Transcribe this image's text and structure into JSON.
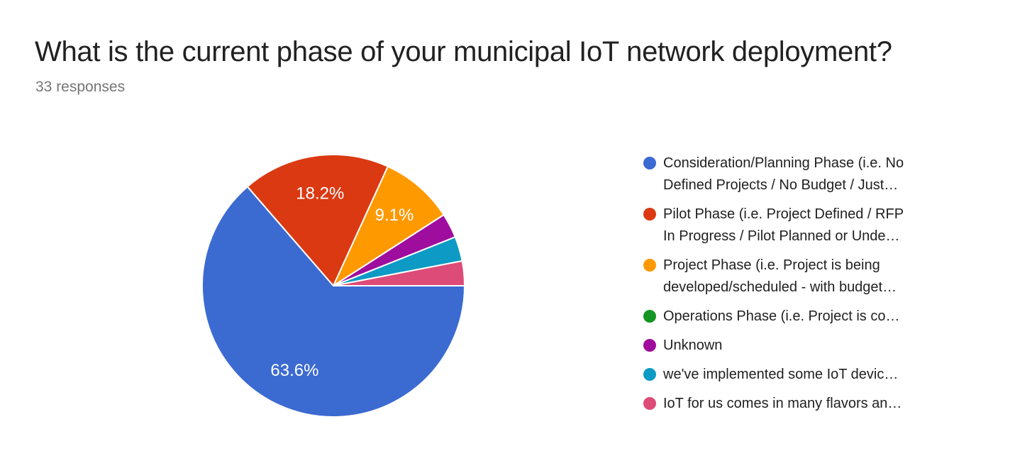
{
  "header": {
    "title": "What is the current phase of your municipal IoT network deployment?",
    "subtitle": "33 responses"
  },
  "chart_data": {
    "type": "pie",
    "title": "What is the current phase of your municipal IoT network deployment?",
    "responses_label": "33 responses",
    "total_responses": 33,
    "start_angle_deg": 90,
    "direction": "clockwise",
    "legend_position": "right",
    "background_color": "#ffffff",
    "slice_border_color": "#ffffff",
    "slices": [
      {
        "label": "Consideration/Planning Phase (i.e. No Defined Projects / No Budget / Just…",
        "legend_lines": [
          "Consideration/Planning Phase (i.e. No",
          "Defined Projects / No Budget / Just…"
        ],
        "value": 21,
        "percent": 63.6,
        "percent_label": "63.6%",
        "color": "#3B6AD1"
      },
      {
        "label": "Pilot Phase (i.e. Project Defined / RFP In Progress / Pilot Planned or Unde…",
        "legend_lines": [
          "Pilot Phase (i.e. Project Defined / RFP",
          "In Progress / Pilot Planned or Unde…"
        ],
        "value": 6,
        "percent": 18.2,
        "percent_label": "18.2%",
        "color": "#DB3912"
      },
      {
        "label": "Project Phase (i.e. Project is being developed/scheduled - with budget…",
        "legend_lines": [
          "Project Phase (i.e. Project is being",
          "developed/scheduled - with budget…"
        ],
        "value": 3,
        "percent": 9.1,
        "percent_label": "9.1%",
        "color": "#FF9900"
      },
      {
        "label": "Operations Phase (i.e. Project is co…",
        "legend_lines": [
          "Operations Phase (i.e. Project is co…"
        ],
        "value": 0,
        "percent": 0,
        "percent_label": "",
        "color": "#159624"
      },
      {
        "label": "Unknown",
        "legend_lines": [
          "Unknown"
        ],
        "value": 1,
        "percent": 3.0,
        "percent_label": "",
        "color": "#9E0D9D"
      },
      {
        "label": "we've implemented some IoT devic…",
        "legend_lines": [
          "we've implemented some IoT devic…"
        ],
        "value": 1,
        "percent": 3.0,
        "percent_label": "",
        "color": "#0D9AC4"
      },
      {
        "label": "IoT for us comes in many flavors an…",
        "legend_lines": [
          "IoT for us comes in many flavors an…"
        ],
        "value": 1,
        "percent": 3.0,
        "percent_label": "",
        "color": "#DD4B78"
      }
    ]
  }
}
